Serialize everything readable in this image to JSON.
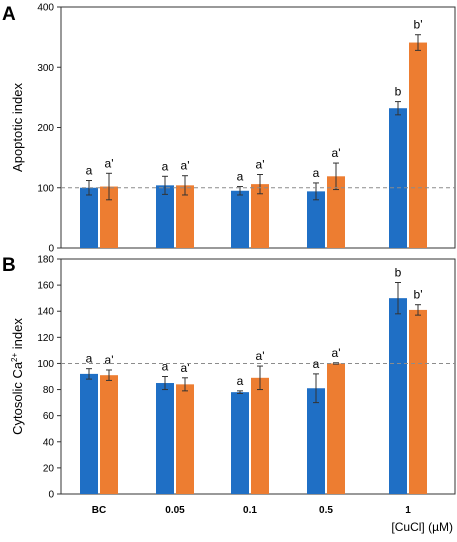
{
  "chart_data": [
    {
      "type": "bar",
      "panel_label": "A",
      "ylabel": "Apoptotic index",
      "xlabel": "",
      "categories": [
        "BC",
        "0.05",
        "0.1",
        "0.5",
        "1"
      ],
      "ylim": [
        0,
        400
      ],
      "yticks": [
        0,
        100,
        200,
        300,
        400
      ],
      "reference_line": 100,
      "grid": false,
      "series": [
        {
          "color": "#1f6fc5",
          "values": [
            100,
            104,
            95,
            94,
            232
          ],
          "errors": [
            12,
            15,
            7,
            14,
            11
          ],
          "labels": [
            "a",
            "a",
            "a",
            "a",
            "b"
          ]
        },
        {
          "color": "#ed7d31",
          "values": [
            102,
            104,
            106,
            119,
            341
          ],
          "errors": [
            22,
            16,
            16,
            22,
            13
          ],
          "labels": [
            "a'",
            "a'",
            "a'",
            "a'",
            "b'"
          ]
        }
      ]
    },
    {
      "type": "bar",
      "panel_label": "B",
      "ylabel_prefix": "Cytosolic Ca",
      "ylabel_sup": "2+",
      "ylabel_suffix": " index",
      "xlabel": "[CuCl] (µM)",
      "categories": [
        "BC",
        "0.05",
        "0.1",
        "0.5",
        "1"
      ],
      "ylim": [
        0,
        180
      ],
      "yticks": [
        0,
        20,
        40,
        60,
        80,
        100,
        120,
        140,
        160,
        180
      ],
      "reference_line": 100,
      "grid": false,
      "series": [
        {
          "color": "#1f6fc5",
          "values": [
            92,
            85,
            78,
            81,
            150
          ],
          "errors": [
            4,
            5,
            1,
            11,
            12
          ],
          "labels": [
            "a",
            "a",
            "a",
            "a",
            "b"
          ]
        },
        {
          "color": "#ed7d31",
          "values": [
            91,
            84,
            89,
            100,
            141
          ],
          "errors": [
            4,
            5,
            9,
            0.5,
            4
          ],
          "labels": [
            "a'",
            "a'",
            "a'",
            "a'",
            "b'"
          ]
        }
      ]
    }
  ]
}
